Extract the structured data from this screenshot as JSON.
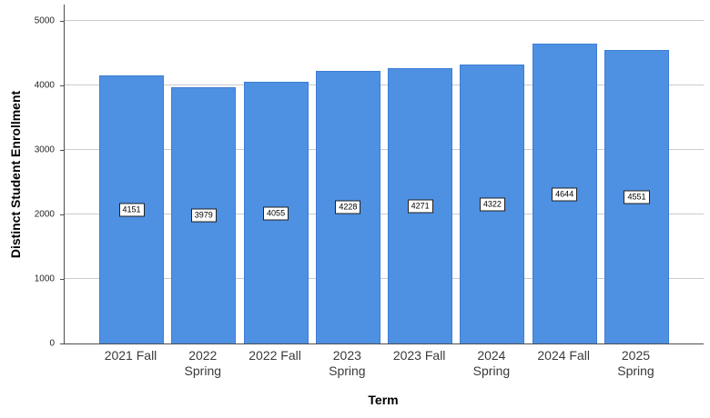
{
  "chart_data": {
    "type": "bar",
    "title": "",
    "xlabel": "Term",
    "ylabel": "Distinct Student Enrollment",
    "categories": [
      "2021 Fall",
      "2022 Spring",
      "2022 Fall",
      "2023 Spring",
      "2023 Fall",
      "2024 Spring",
      "2024 Fall",
      "2025 Spring"
    ],
    "values": [
      4151,
      3979,
      4055,
      4228,
      4271,
      4322,
      4644,
      4551
    ],
    "ylim": [
      0,
      5000
    ],
    "yticks": [
      0,
      1000,
      2000,
      3000,
      4000,
      5000
    ],
    "grid": true,
    "legend": "none",
    "value_labels_boxed": true
  },
  "style": {
    "bar_fill": "#4E90E2",
    "bar_border": "#3D7ED2",
    "gridline": "#cbcbcb",
    "axis_line": "#4d4d4d",
    "value_label_bg": "#ffffff",
    "value_label_border": "#1f1f1f",
    "tick_text": "#262626",
    "category_text": "#3a3a3a",
    "title_text": "#000000",
    "background": "#ffffff"
  }
}
